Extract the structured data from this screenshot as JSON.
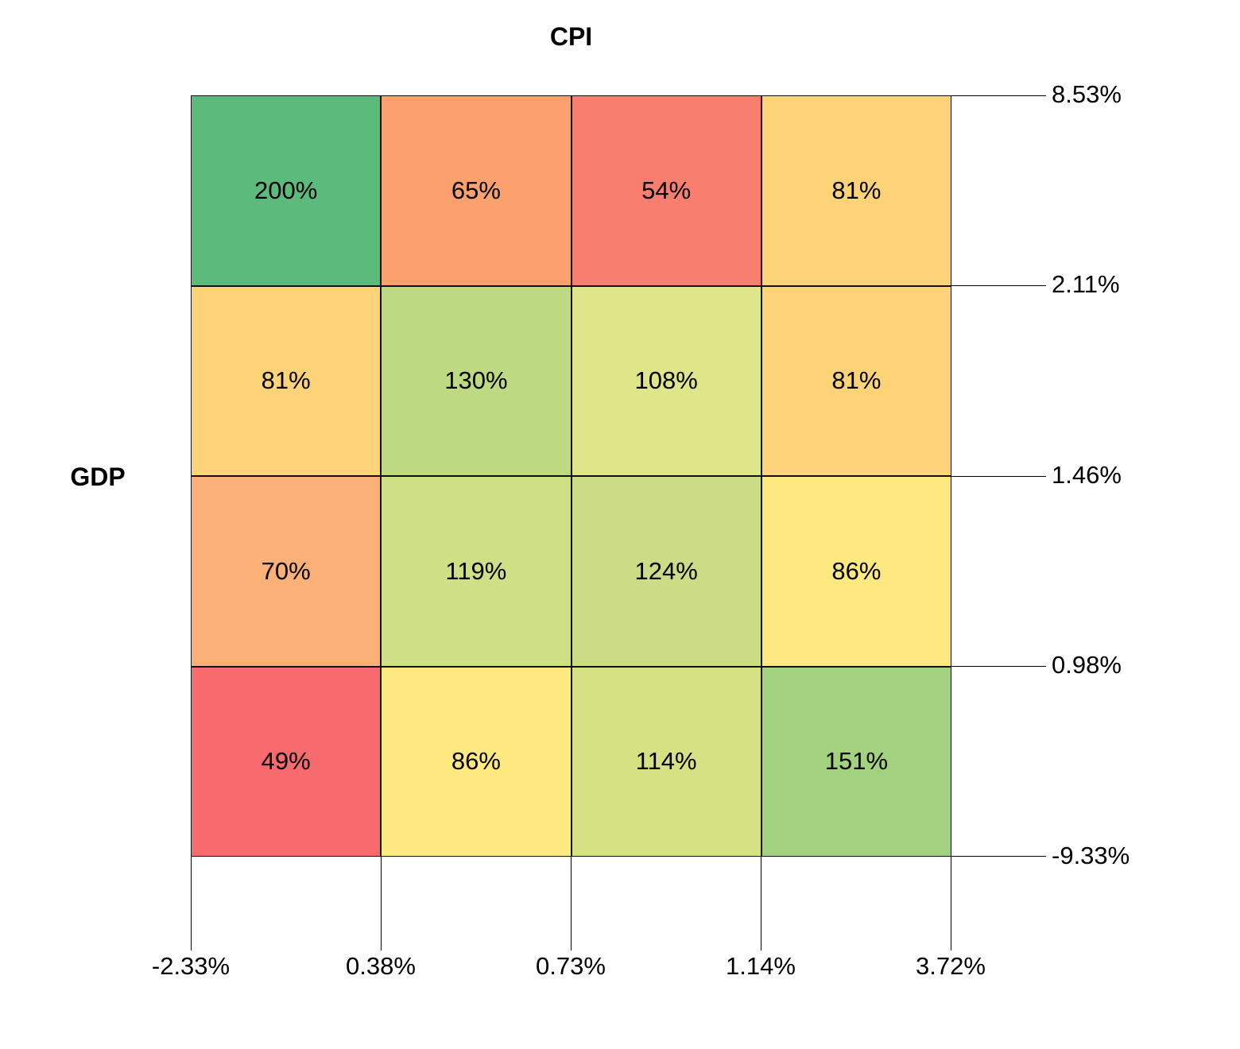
{
  "chart_data": {
    "type": "heatmap",
    "title": "CPI",
    "row_axis_label": "GDP",
    "x_tick_labels": [
      "-2.33%",
      "0.38%",
      "0.73%",
      "1.14%",
      "3.72%"
    ],
    "y_tick_labels": [
      "8.53%",
      "2.11%",
      "1.46%",
      "0.98%",
      "-9.33%"
    ],
    "values_matrix": [
      [
        200,
        65,
        54,
        81
      ],
      [
        81,
        130,
        108,
        81
      ],
      [
        70,
        119,
        124,
        86
      ],
      [
        49,
        86,
        114,
        151
      ]
    ],
    "legend": "none",
    "grid": "cell-borders",
    "cells": [
      {
        "label": "200%",
        "color": "#5dba7d"
      },
      {
        "label": "65%",
        "color": "#fba16e"
      },
      {
        "label": "54%",
        "color": "#f87f70"
      },
      {
        "label": "81%",
        "color": "#fdd377"
      },
      {
        "label": "81%",
        "color": "#fdd377"
      },
      {
        "label": "130%",
        "color": "#bdda83"
      },
      {
        "label": "108%",
        "color": "#dfe589"
      },
      {
        "label": "81%",
        "color": "#fdd377"
      },
      {
        "label": "70%",
        "color": "#fbb077"
      },
      {
        "label": "119%",
        "color": "#cfdf85"
      },
      {
        "label": "124%",
        "color": "#cadd84"
      },
      {
        "label": "86%",
        "color": "#fde97f"
      },
      {
        "label": "49%",
        "color": "#f76a6d"
      },
      {
        "label": "86%",
        "color": "#fde97f"
      },
      {
        "label": "114%",
        "color": "#d6e184"
      },
      {
        "label": "151%",
        "color": "#a2d27f"
      }
    ]
  }
}
